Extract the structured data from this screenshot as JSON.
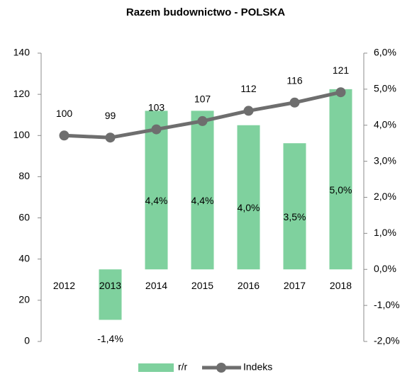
{
  "chart_data": {
    "type": "bar-line",
    "title": "Razem budownictwo - POLSKA",
    "categories": [
      "2012",
      "2013",
      "2014",
      "2015",
      "2016",
      "2017",
      "2018"
    ],
    "series": [
      {
        "name": "r/r",
        "type": "bar",
        "axis": "y2",
        "color": "#7fd19e",
        "values": [
          null,
          -1.4,
          4.4,
          4.4,
          4.0,
          3.5,
          5.0
        ],
        "value_labels": [
          null,
          "-1,4%",
          "4,4%",
          "4,4%",
          "4,0%",
          "3,5%",
          "5,0%"
        ]
      },
      {
        "name": "Indeks",
        "type": "line",
        "axis": "y",
        "color": "#6e6e6e",
        "values": [
          100,
          99,
          103,
          107,
          112,
          116,
          121
        ]
      }
    ],
    "ylim": [
      0,
      140
    ],
    "yticks": [
      0,
      20,
      40,
      60,
      80,
      100,
      120,
      140
    ],
    "y2lim": [
      -2.0,
      6.0
    ],
    "y2ticks": [
      {
        "value": -2.0,
        "label": "-2,0%"
      },
      {
        "value": -1.0,
        "label": "-1,0%"
      },
      {
        "value": 0.0,
        "label": "0,0%"
      },
      {
        "value": 1.0,
        "label": "1,0%"
      },
      {
        "value": 2.0,
        "label": "2,0%"
      },
      {
        "value": 3.0,
        "label": "3,0%"
      },
      {
        "value": 4.0,
        "label": "4,0%"
      },
      {
        "value": 5.0,
        "label": "5,0%"
      },
      {
        "value": 6.0,
        "label": "6,0%"
      }
    ],
    "legend": "bottom"
  }
}
